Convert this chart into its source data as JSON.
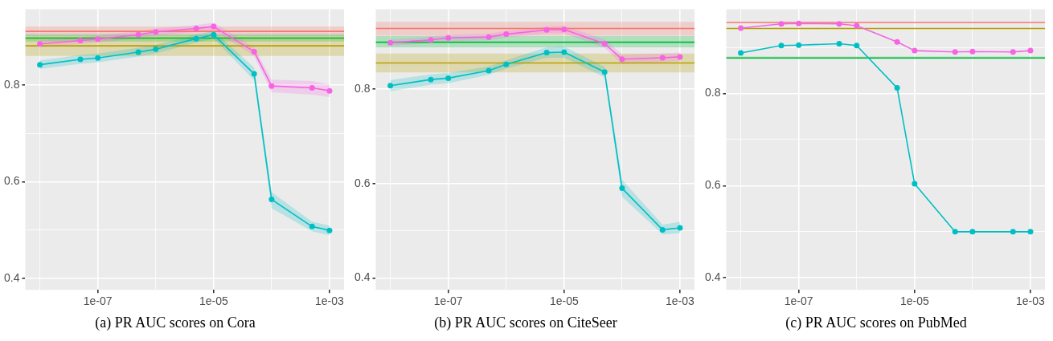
{
  "chart_data": [
    {
      "type": "line",
      "title": "(a) PR AUC scores on Cora",
      "x": [
        1e-08,
        5e-08,
        1e-07,
        5e-07,
        1e-06,
        5e-06,
        1e-05,
        5e-05,
        0.0001,
        0.0005,
        0.001
      ],
      "xlim": [
        5.6e-09,
        0.00178
      ],
      "xticks": [
        {
          "value": 1e-08,
          "label": null
        },
        {
          "value": 1e-07,
          "label": "1e-07"
        },
        {
          "value": 1e-06,
          "label": null
        },
        {
          "value": 1e-05,
          "label": "1e-05"
        },
        {
          "value": 0.0001,
          "label": null
        },
        {
          "value": 0.001,
          "label": "1e-03"
        }
      ],
      "ylim": [
        0.376,
        0.957
      ],
      "yticks": [
        0.4,
        {
          "value": 0.5,
          "label": null
        },
        0.6,
        {
          "value": 0.7,
          "label": null
        },
        0.8,
        {
          "value": 0.9,
          "label": null
        }
      ],
      "log": "x",
      "grid": true,
      "legend": false,
      "marker": "circle",
      "line_style": "solid",
      "series": [
        {
          "color": "#f564e3",
          "values": [
            0.885,
            0.892,
            0.895,
            0.904,
            0.91,
            0.917,
            0.921,
            0.869,
            0.798,
            0.794,
            0.788
          ],
          "lower": [
            0.878,
            0.885,
            0.888,
            0.897,
            0.903,
            0.91,
            0.913,
            0.86,
            0.785,
            0.78,
            0.775
          ],
          "upper": [
            0.892,
            0.899,
            0.902,
            0.911,
            0.917,
            0.924,
            0.929,
            0.878,
            0.811,
            0.808,
            0.801
          ]
        },
        {
          "color": "#00bfc4",
          "values": [
            0.842,
            0.853,
            0.856,
            0.868,
            0.874,
            0.896,
            0.904,
            0.823,
            0.563,
            0.507,
            0.499
          ],
          "lower": [
            0.833,
            0.844,
            0.847,
            0.859,
            0.865,
            0.888,
            0.896,
            0.81,
            0.545,
            0.497,
            0.489
          ],
          "upper": [
            0.851,
            0.862,
            0.865,
            0.877,
            0.883,
            0.904,
            0.912,
            0.836,
            0.578,
            0.517,
            0.509
          ]
        }
      ],
      "ref_lines": [
        {
          "axis": "y",
          "value": 0.911,
          "color": "#f8766d"
        },
        {
          "axis": "y",
          "value": 0.897,
          "color": "#00ba38"
        },
        {
          "axis": "y",
          "value": 0.881,
          "color": "#b79f00"
        }
      ],
      "bands": [
        {
          "axis": "y",
          "from": 0.901,
          "to": 0.921,
          "color": "#f8766d"
        },
        {
          "axis": "y",
          "from": 0.89,
          "to": 0.905,
          "color": "#00ba38"
        },
        {
          "axis": "y",
          "from": 0.86,
          "to": 0.901,
          "color": "#b79f00"
        }
      ]
    },
    {
      "type": "line",
      "title": "(b) PR AUC scores on CiteSeer",
      "x": [
        1e-08,
        5e-08,
        1e-07,
        5e-07,
        1e-06,
        5e-06,
        1e-05,
        5e-05,
        0.0001,
        0.0005,
        0.001
      ],
      "xlim": [
        5.6e-09,
        0.00178
      ],
      "xticks": [
        {
          "value": 1e-08,
          "label": null
        },
        {
          "value": 1e-07,
          "label": "1e-07"
        },
        {
          "value": 1e-06,
          "label": null
        },
        {
          "value": 1e-05,
          "label": "1e-05"
        },
        {
          "value": 0.0001,
          "label": null
        },
        {
          "value": 0.001,
          "label": "1e-03"
        }
      ],
      "ylim": [
        0.375,
        0.969
      ],
      "yticks": [
        0.4,
        {
          "value": 0.5,
          "label": null
        },
        0.6,
        {
          "value": 0.7,
          "label": null
        },
        0.8,
        {
          "value": 0.9,
          "label": null
        }
      ],
      "log": "x",
      "grid": true,
      "legend": false,
      "marker": "circle",
      "line_style": "solid",
      "series": [
        {
          "color": "#f564e3",
          "values": [
            0.898,
            0.904,
            0.908,
            0.91,
            0.916,
            0.925,
            0.926,
            0.896,
            0.863,
            0.866,
            0.868
          ],
          "lower": [
            0.891,
            0.897,
            0.901,
            0.903,
            0.909,
            0.918,
            0.918,
            0.887,
            0.853,
            0.857,
            0.859
          ],
          "upper": [
            0.905,
            0.911,
            0.915,
            0.917,
            0.923,
            0.932,
            0.934,
            0.905,
            0.873,
            0.875,
            0.877
          ]
        },
        {
          "color": "#00bfc4",
          "values": [
            0.807,
            0.82,
            0.823,
            0.839,
            0.852,
            0.877,
            0.878,
            0.836,
            0.59,
            0.502,
            0.506
          ],
          "lower": [
            0.795,
            0.809,
            0.812,
            0.83,
            0.843,
            0.866,
            0.866,
            0.825,
            0.572,
            0.492,
            0.495
          ],
          "upper": [
            0.819,
            0.831,
            0.834,
            0.848,
            0.861,
            0.888,
            0.89,
            0.847,
            0.608,
            0.513,
            0.519
          ]
        }
      ],
      "ref_lines": [
        {
          "axis": "y",
          "value": 0.928,
          "color": "#f8766d"
        },
        {
          "axis": "y",
          "value": 0.899,
          "color": "#00ba38"
        },
        {
          "axis": "y",
          "value": 0.855,
          "color": "#b79f00"
        }
      ],
      "bands": [
        {
          "axis": "y",
          "from": 0.913,
          "to": 0.942,
          "color": "#f8766d"
        },
        {
          "axis": "y",
          "from": 0.888,
          "to": 0.912,
          "color": "#00ba38"
        },
        {
          "axis": "y",
          "from": 0.835,
          "to": 0.875,
          "color": "#b79f00"
        }
      ]
    },
    {
      "type": "line",
      "title": "(c) PR AUC scores on PubMed",
      "x": [
        1e-08,
        5e-08,
        1e-07,
        5e-07,
        1e-06,
        5e-06,
        1e-05,
        5e-05,
        0.0001,
        0.0005,
        0.001
      ],
      "xlim": [
        5.6e-09,
        0.00178
      ],
      "xticks": [
        {
          "value": 1e-08,
          "label": null
        },
        {
          "value": 1e-07,
          "label": "1e-07"
        },
        {
          "value": 1e-06,
          "label": null
        },
        {
          "value": 1e-05,
          "label": "1e-05"
        },
        {
          "value": 0.0001,
          "label": null
        },
        {
          "value": 0.001,
          "label": "1e-03"
        }
      ],
      "ylim": [
        0.374,
        0.983
      ],
      "yticks": [
        0.4,
        {
          "value": 0.5,
          "label": null
        },
        0.6,
        {
          "value": 0.7,
          "label": null
        },
        0.8,
        {
          "value": 0.9,
          "label": null
        }
      ],
      "log": "x",
      "grid": true,
      "legend": false,
      "marker": "circle",
      "line_style": "solid",
      "series": [
        {
          "color": "#f564e3",
          "values": [
            0.942,
            0.951,
            0.952,
            0.951,
            0.947,
            0.912,
            0.893,
            0.89,
            0.891,
            0.89,
            0.893
          ]
        },
        {
          "color": "#00bfc4",
          "values": [
            0.888,
            0.904,
            0.905,
            0.908,
            0.904,
            0.812,
            0.604,
            0.5,
            0.5,
            0.5,
            0.5
          ]
        }
      ],
      "ref_lines": [
        {
          "axis": "y",
          "value": 0.954,
          "color": "#f8766d"
        },
        {
          "axis": "y",
          "value": 0.941,
          "color": "#b79f00"
        },
        {
          "axis": "y",
          "value": 0.877,
          "color": "#00ba38"
        }
      ],
      "bands": [
        {
          "axis": "y",
          "from": 0.875,
          "to": 0.88,
          "color": "#00ba38"
        }
      ]
    }
  ]
}
